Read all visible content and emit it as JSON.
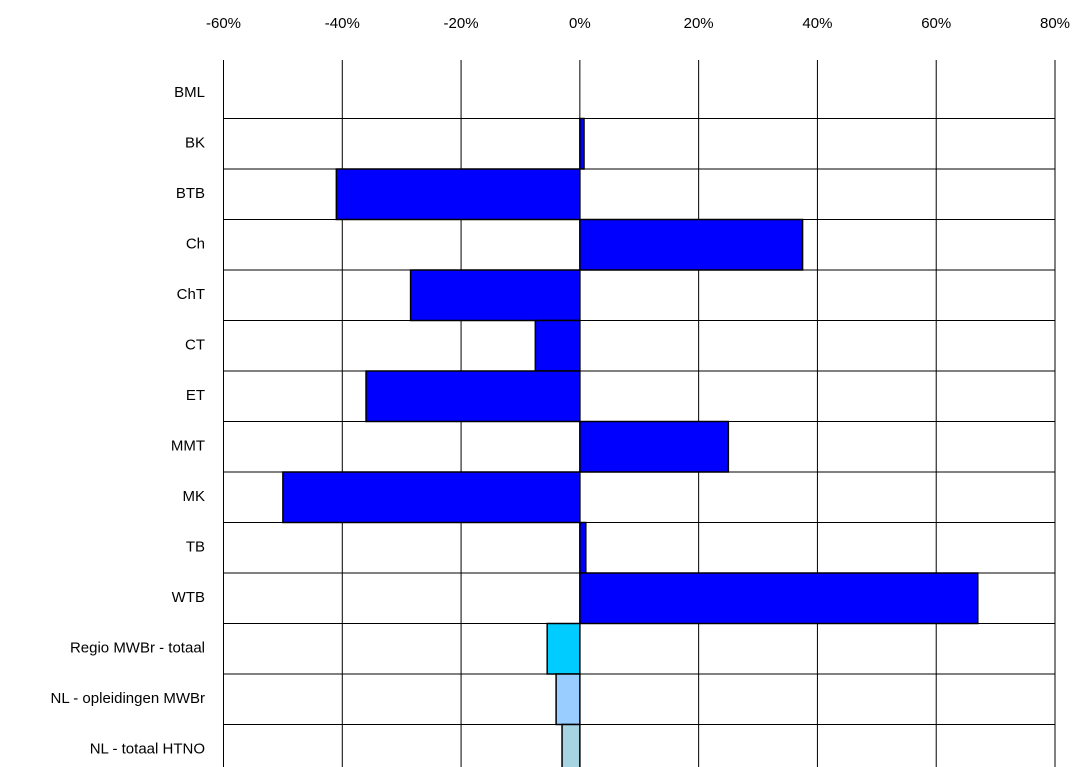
{
  "chart_data": {
    "type": "hbar",
    "categories": [
      "BML",
      "BK",
      "BTB",
      "Ch",
      "ChT",
      "CT",
      "ET",
      "MMT",
      "MK",
      "TB",
      "WTB",
      "Regio MWBr - totaal",
      "NL - opleidingen MWBr",
      "NL - totaal HTNO"
    ],
    "values": [
      0,
      0.7,
      -41,
      37.5,
      -28.5,
      -7.5,
      -36,
      25,
      -50,
      1,
      67,
      -5.5,
      -4,
      -3
    ],
    "colors": [
      "#0000ff",
      "#0000ff",
      "#0000ff",
      "#0000ff",
      "#0000ff",
      "#0000ff",
      "#0000ff",
      "#0000ff",
      "#0000ff",
      "#0000ff",
      "#0000ff",
      "#00ccff",
      "#99ccff",
      "#a6d4e0"
    ],
    "xlim": [
      -60,
      80
    ],
    "xticks": [
      {
        "value": -60,
        "label": "-60%"
      },
      {
        "value": -40,
        "label": "-40%"
      },
      {
        "value": -20,
        "label": "-20%"
      },
      {
        "value": 0,
        "label": "0%"
      },
      {
        "value": 20,
        "label": "20%"
      },
      {
        "value": 40,
        "label": "40%"
      },
      {
        "value": 60,
        "label": "60%"
      },
      {
        "value": 80,
        "label": "80%"
      }
    ],
    "grid": true
  }
}
